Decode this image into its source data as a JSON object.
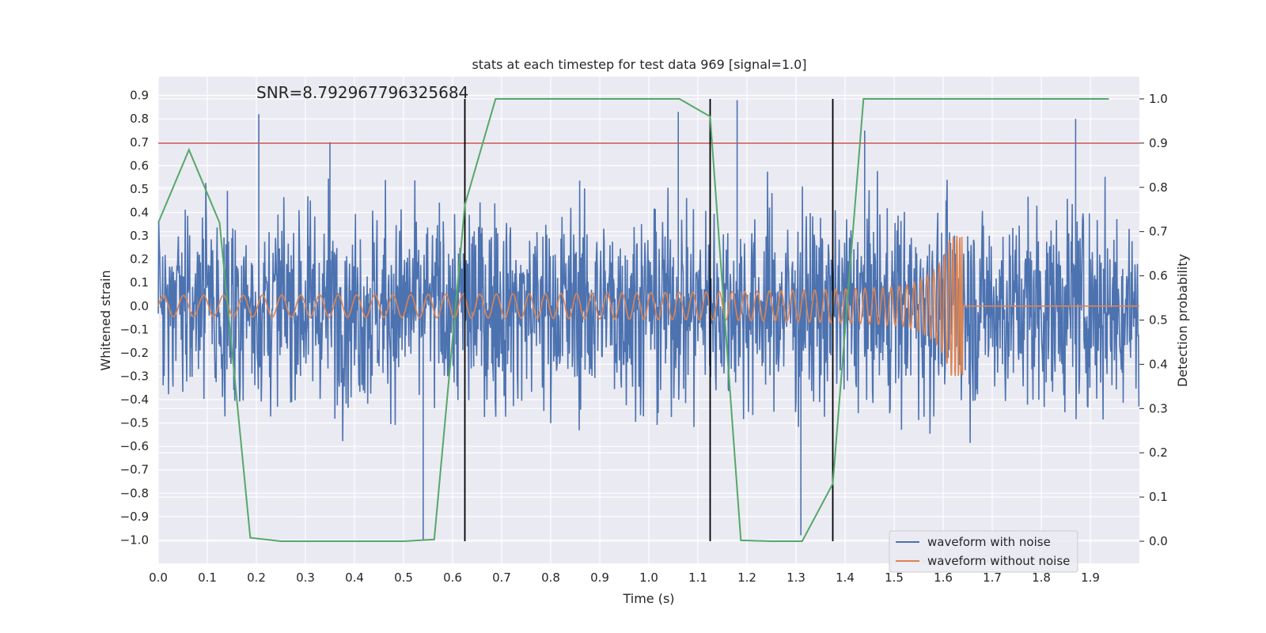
{
  "chart_data": {
    "type": "line",
    "title": "stats at each timestep for test data 969 [signal=1.0]",
    "xlabel": "Time (s)",
    "ylabel": "Whitened strain",
    "ylabel_right": "Detection probability",
    "xlim": [
      0.0,
      2.0
    ],
    "ylim": [
      -1.1,
      0.98
    ],
    "ylim_right": [
      -0.05,
      1.05
    ],
    "x_ticks": [
      "0.0",
      "0.1",
      "0.2",
      "0.3",
      "0.4",
      "0.5",
      "0.6",
      "0.7",
      "0.8",
      "0.9",
      "1.0",
      "1.1",
      "1.2",
      "1.3",
      "1.4",
      "1.5",
      "1.6",
      "1.7",
      "1.8",
      "1.9"
    ],
    "y_ticks": [
      "0.9",
      "0.8",
      "0.7",
      "0.6",
      "0.5",
      "0.4",
      "0.3",
      "0.2",
      "0.1",
      "0.0",
      "−0.1",
      "−0.2",
      "−0.3",
      "−0.4",
      "−0.5",
      "−0.6",
      "−0.7",
      "−0.8",
      "−0.9",
      "−1.0"
    ],
    "y_right_ticks": [
      "1.0",
      "0.9",
      "0.8",
      "0.7",
      "0.6",
      "0.5",
      "0.4",
      "0.3",
      "0.2",
      "0.1",
      "0.0"
    ],
    "annotation": "SNR=8.792967796325684",
    "threshold": 0.9,
    "vertical_lines": [
      0.625,
      1.125,
      1.375
    ],
    "series": [
      {
        "name": "waveform with noise",
        "color": "#4c72b0",
        "amplitude_envelope": 0.9,
        "min": -1.0,
        "max": 0.88,
        "notable_peaks": [
          [
            0.205,
            0.82
          ],
          [
            0.35,
            0.7
          ],
          [
            0.54,
            -1.0
          ],
          [
            1.06,
            0.83
          ],
          [
            1.18,
            0.88
          ],
          [
            1.31,
            -0.98
          ],
          [
            1.44,
            0.75
          ],
          [
            1.87,
            0.8
          ]
        ]
      },
      {
        "name": "waveform without noise",
        "color": "#dd8452",
        "chirp_start_amplitude": 0.045,
        "chirp_peak_time": 1.64,
        "chirp_peak_amplitude": 0.3,
        "post_merger_value": 0.0
      },
      {
        "name": "Detection probability",
        "color": "#55a868",
        "axis": "right",
        "x": [
          0.0,
          0.0625,
          0.125,
          0.1875,
          0.25,
          0.3125,
          0.375,
          0.4375,
          0.5,
          0.5625,
          0.625,
          0.6875,
          0.75,
          0.8125,
          0.875,
          0.9375,
          1.0,
          1.0625,
          1.125,
          1.1875,
          1.25,
          1.3125,
          1.375,
          1.4375,
          1.5,
          1.5625,
          1.625,
          1.6875,
          1.75,
          1.8125,
          1.875,
          1.9375
        ],
        "y": [
          0.72,
          0.885,
          0.72,
          0.008,
          0.0,
          0.0,
          0.0,
          0.0,
          0.0,
          0.004,
          0.76,
          1.0,
          1.0,
          1.0,
          1.0,
          1.0,
          1.0,
          1.0,
          0.96,
          0.002,
          0.0,
          0.0,
          0.13,
          1.0,
          1.0,
          1.0,
          1.0,
          1.0,
          1.0,
          1.0,
          1.0,
          1.0
        ]
      }
    ],
    "legend_position": "lower right"
  }
}
